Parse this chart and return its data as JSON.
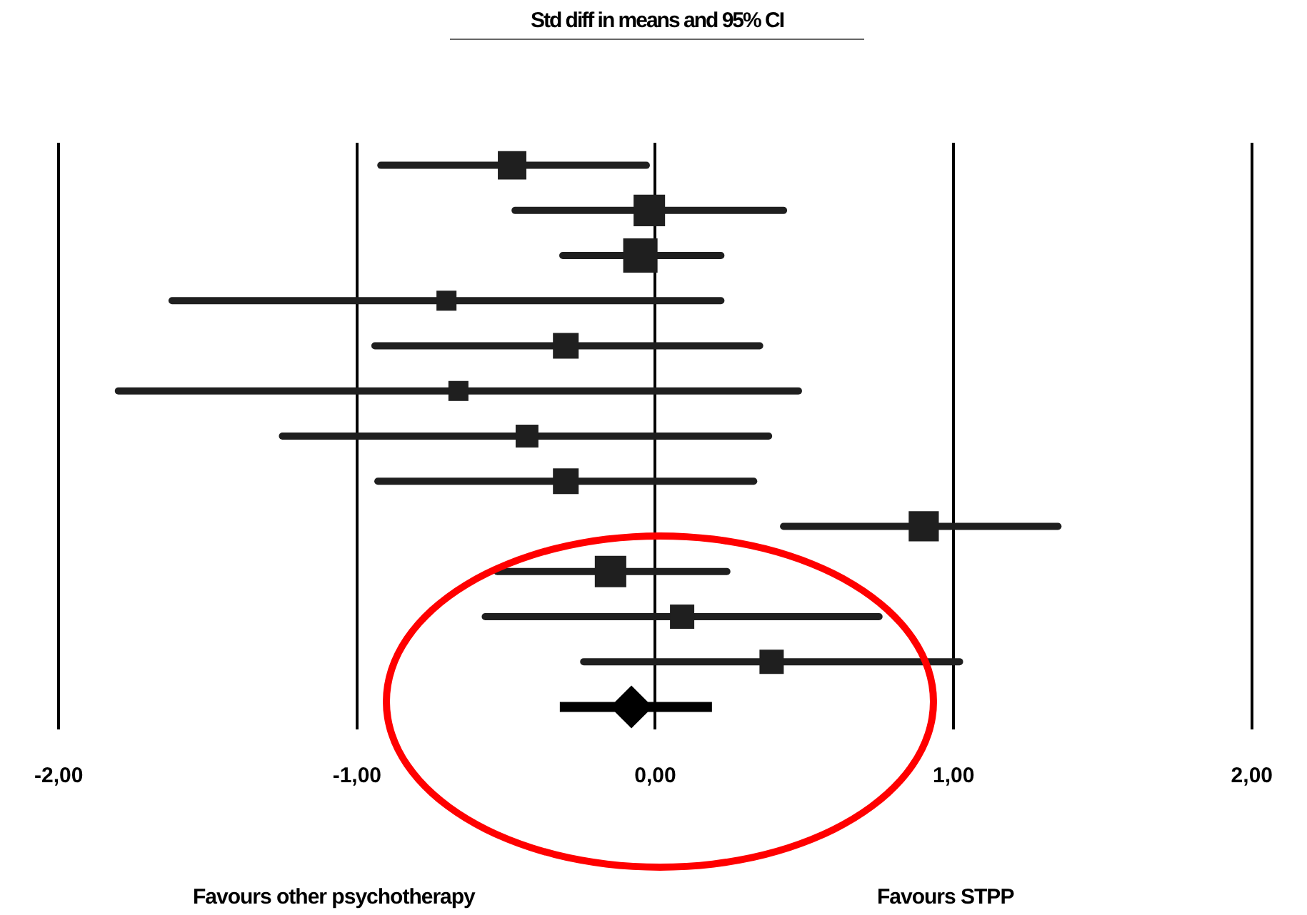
{
  "chart_data": {
    "type": "scatter",
    "orientation": "horizontal",
    "title": "Std diff in means and 95% CI",
    "categories": [
      null,
      null,
      null,
      null,
      null,
      null,
      null,
      null,
      null,
      null,
      null,
      null,
      null
    ],
    "series": [
      {
        "type": "bubble",
        "color": "#1f1f1f",
        "marker": "square",
        "values": [
          -0.48,
          -0.02,
          -0.05,
          -0.7,
          -0.3,
          -0.66,
          -0.43,
          -0.3,
          0.9,
          -0.15,
          0.09,
          0.39,
          null
        ],
        "errors": [
          [
            -0.92,
            -0.03
          ],
          [
            -0.47,
            0.43
          ],
          [
            -0.31,
            0.22
          ],
          [
            -1.62,
            0.22
          ],
          [
            -0.94,
            0.35
          ],
          [
            -1.8,
            0.48
          ],
          [
            -1.25,
            0.38
          ],
          [
            -0.93,
            0.33
          ],
          [
            0.43,
            1.35
          ],
          [
            -0.53,
            0.24
          ],
          [
            -0.57,
            0.75
          ],
          [
            -0.24,
            1.02
          ],
          null
        ],
        "sizes": [
          0.69,
          0.84,
          1,
          0.34,
          0.56,
          0.34,
          0.44,
          0.56,
          0.77,
          0.84,
          0.5,
          0.5,
          null
        ]
      },
      {
        "type": "scatter",
        "color": "#000000",
        "marker": "diamond",
        "values": [
          null,
          null,
          null,
          null,
          null,
          null,
          null,
          null,
          null,
          null,
          null,
          null,
          -0.08
        ],
        "errors": [
          null,
          null,
          null,
          null,
          null,
          null,
          null,
          null,
          null,
          null,
          null,
          null,
          [
            -0.32,
            0.19
          ]
        ]
      }
    ],
    "xlim": [
      -2,
      2
    ],
    "xticks": [
      {
        "value": -2,
        "label": "-2,00"
      },
      {
        "value": -1,
        "label": "-1,00"
      },
      {
        "value": 0,
        "label": "0,00"
      },
      {
        "value": 1,
        "label": "1,00"
      },
      {
        "value": 2,
        "label": "2,00"
      }
    ],
    "grid": "x",
    "tick_labels": "x",
    "annotations": [
      "Favours other psychotherapy",
      "Favours STPP"
    ]
  }
}
